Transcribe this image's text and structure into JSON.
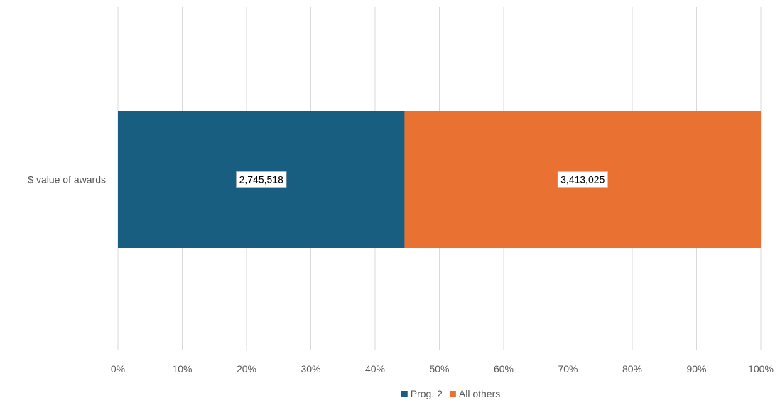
{
  "chart_data": {
    "type": "bar",
    "orientation": "horizontal",
    "stacking": "percent",
    "categories": [
      "$ value of awards"
    ],
    "series": [
      {
        "name": "Prog. 2",
        "values": [
          2745518
        ],
        "value_labels": [
          "2,745,518"
        ],
        "color": "#175E80"
      },
      {
        "name": "All others",
        "values": [
          3413025
        ],
        "value_labels": [
          "3,413,025"
        ],
        "color": "#E97132"
      }
    ],
    "xlim": [
      0,
      100
    ],
    "x_tick_labels": [
      "0%",
      "10%",
      "20%",
      "30%",
      "40%",
      "50%",
      "60%",
      "70%",
      "80%",
      "90%",
      "100%"
    ],
    "grid": true,
    "legend_position": "bottom",
    "title": "",
    "xlabel": "",
    "ylabel": ""
  }
}
